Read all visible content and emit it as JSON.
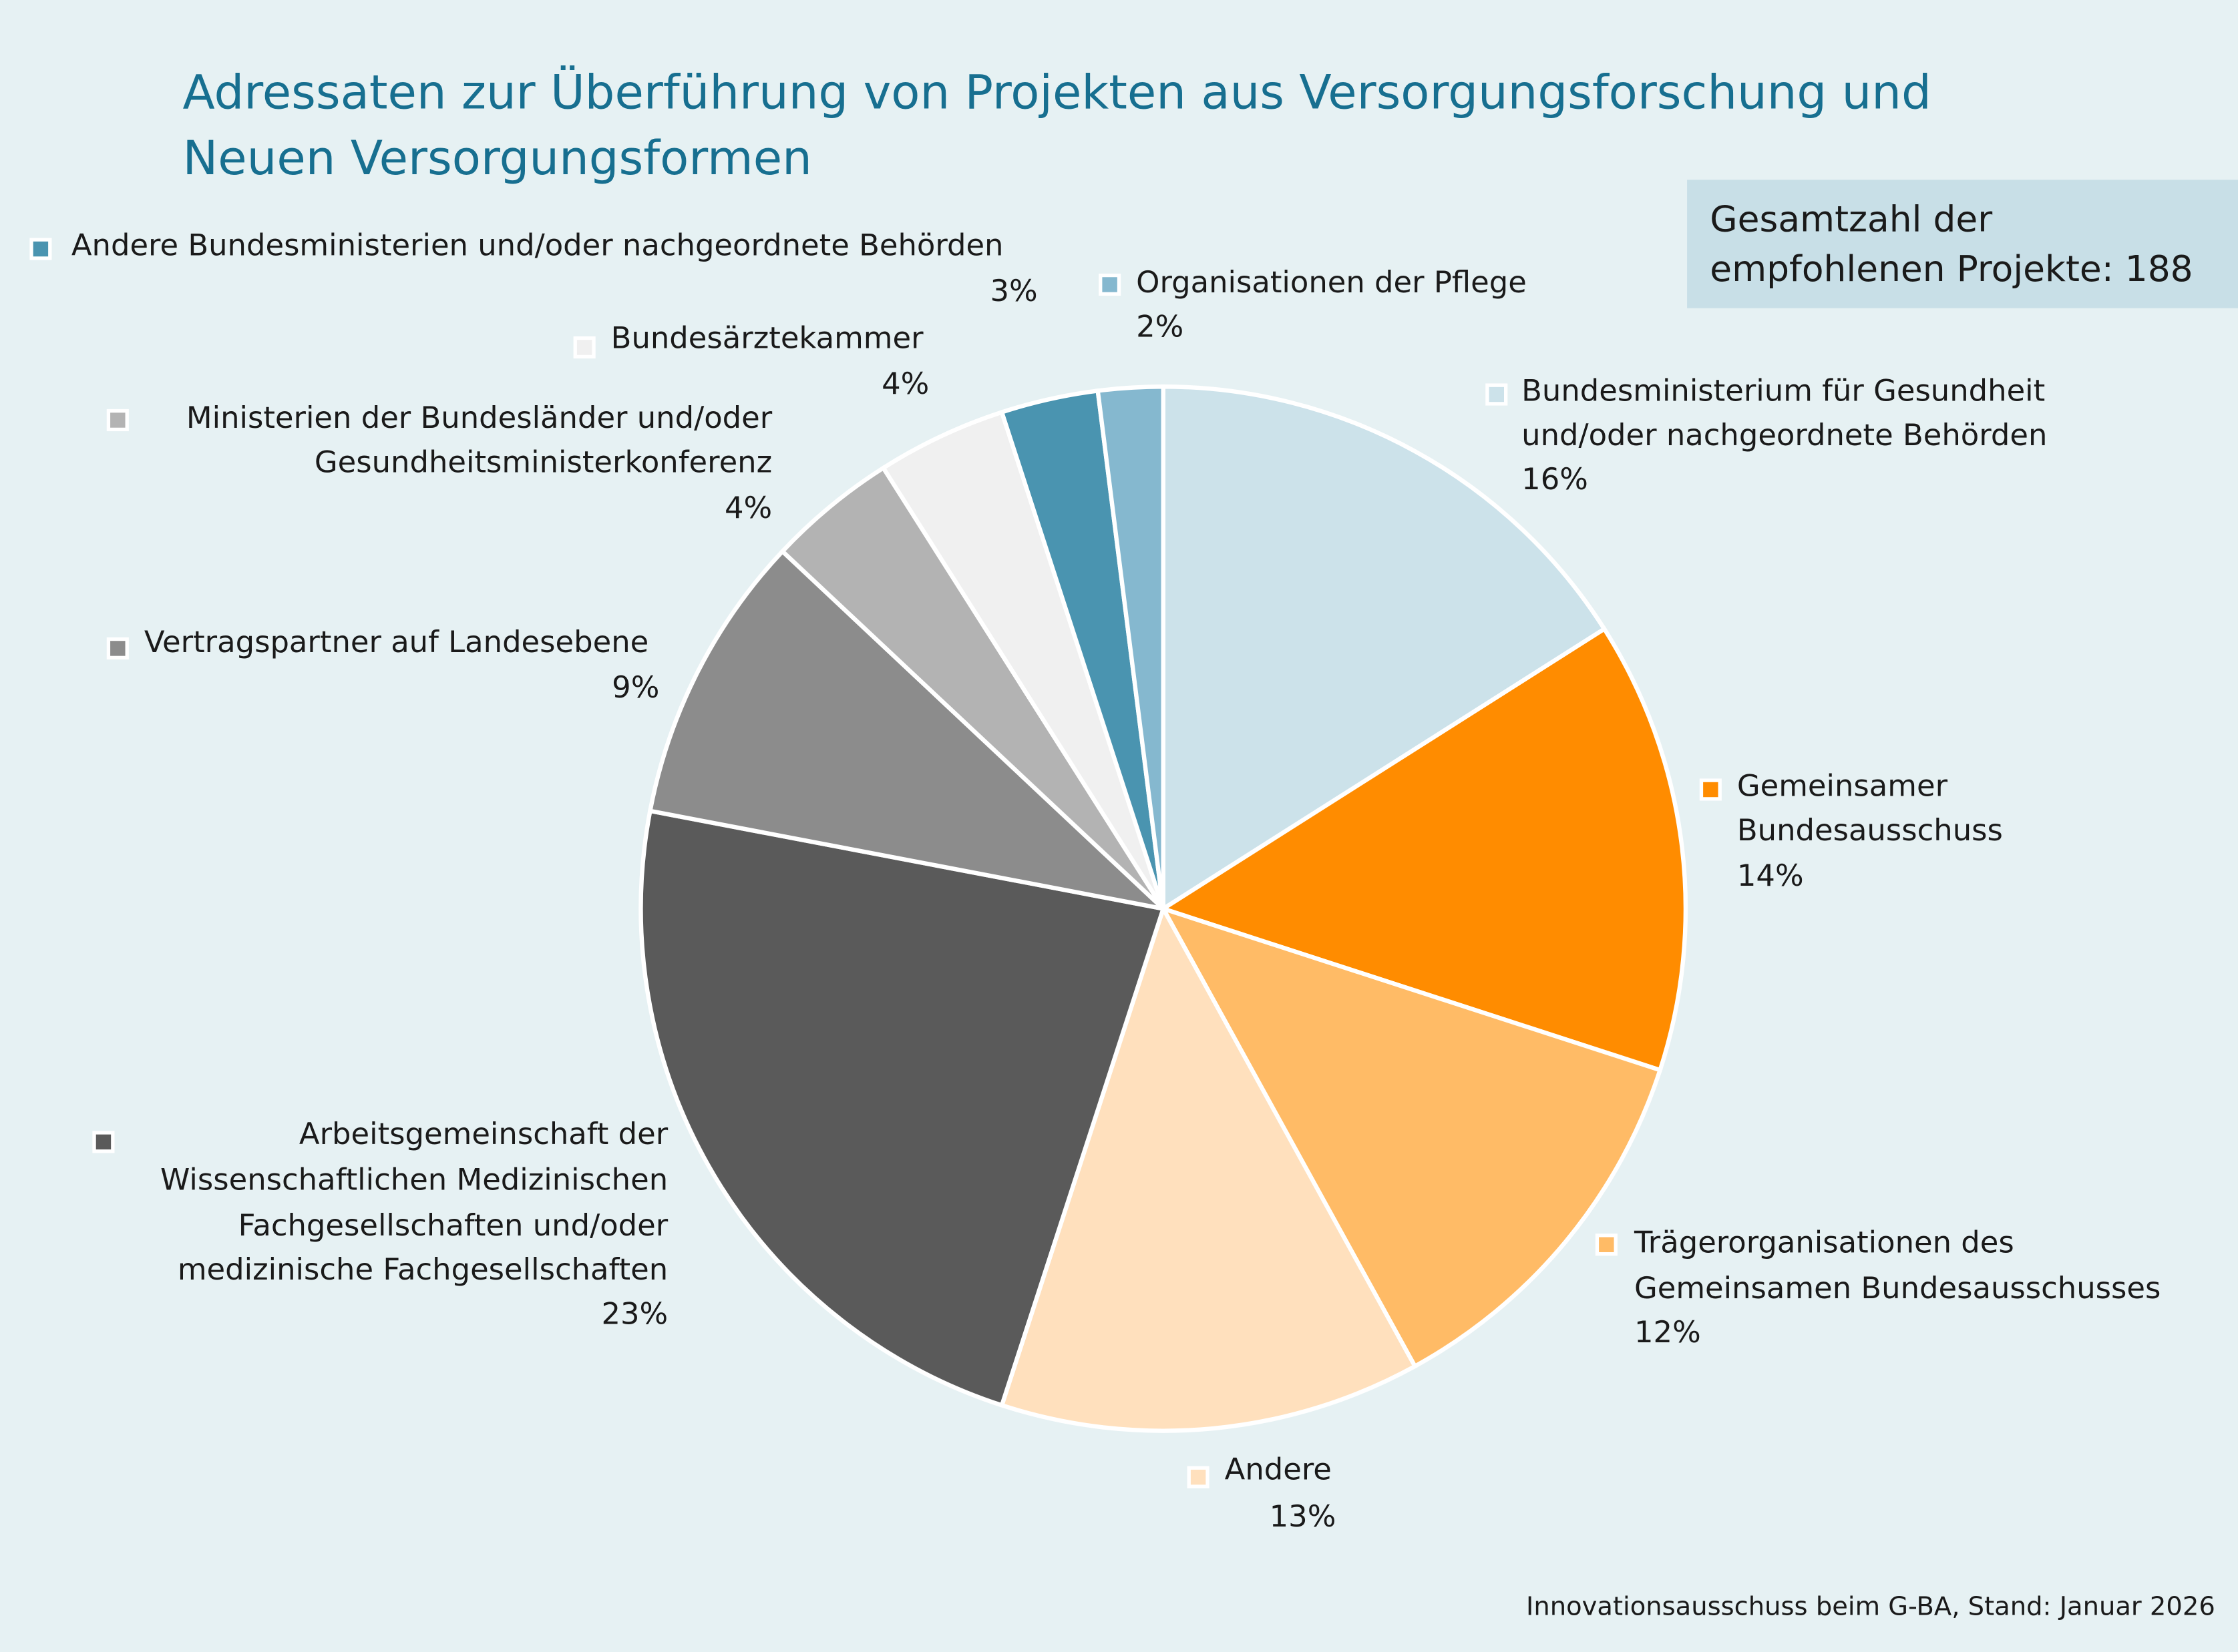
{
  "chart_data": {
    "type": "pie",
    "title": [
      "Adressaten zur Überführung von Projekten aus Versorgungsforschung und",
      "Neuen Versorgungsformen"
    ],
    "total_note": [
      "Gesamtzahl der",
      "empfohlenen Projekte: 188"
    ],
    "source": "Innovationsausschuss beim G-BA, Stand: Januar 2026",
    "categories": [
      [
        "Bundesministerium für Gesundheit",
        "und/oder nachgeordnete Behörden"
      ],
      [
        "Gemeinsamer",
        "Bundesausschuss"
      ],
      [
        "Trägerorganisationen des",
        "Gemeinsamen Bundesausschusses"
      ],
      [
        "Andere"
      ],
      [
        "Arbeitsgemeinschaft der",
        "Wissenschaftlichen Medizinischen",
        "Fachgesellschaften und/oder",
        "medizinische Fachgesellschaften"
      ],
      [
        "Vertragspartner auf Landesebene"
      ],
      [
        "Ministerien der Bundesländer und/oder",
        "Gesundheitsministerkonferenz"
      ],
      [
        "Bundesärztekammer"
      ],
      [
        "Andere Bundesministerien und/oder nachgeordnete Behörden"
      ],
      [
        "Organisationen der Pflege"
      ]
    ],
    "values": [
      16,
      14,
      12,
      13,
      23,
      9,
      4,
      4,
      3,
      2
    ],
    "value_labels": [
      "16%",
      "14%",
      "12%",
      "13%",
      "23%",
      "9%",
      "4%",
      "4%",
      "3%",
      "2%"
    ],
    "colors": [
      "#cce2ea",
      "#ff8c00",
      "#ffbb66",
      "#ffe0bd",
      "#5a5a5a",
      "#8c8c8c",
      "#b3b3b3",
      "#f0f0f0",
      "#4a94b0",
      "#85b8cf"
    ]
  }
}
